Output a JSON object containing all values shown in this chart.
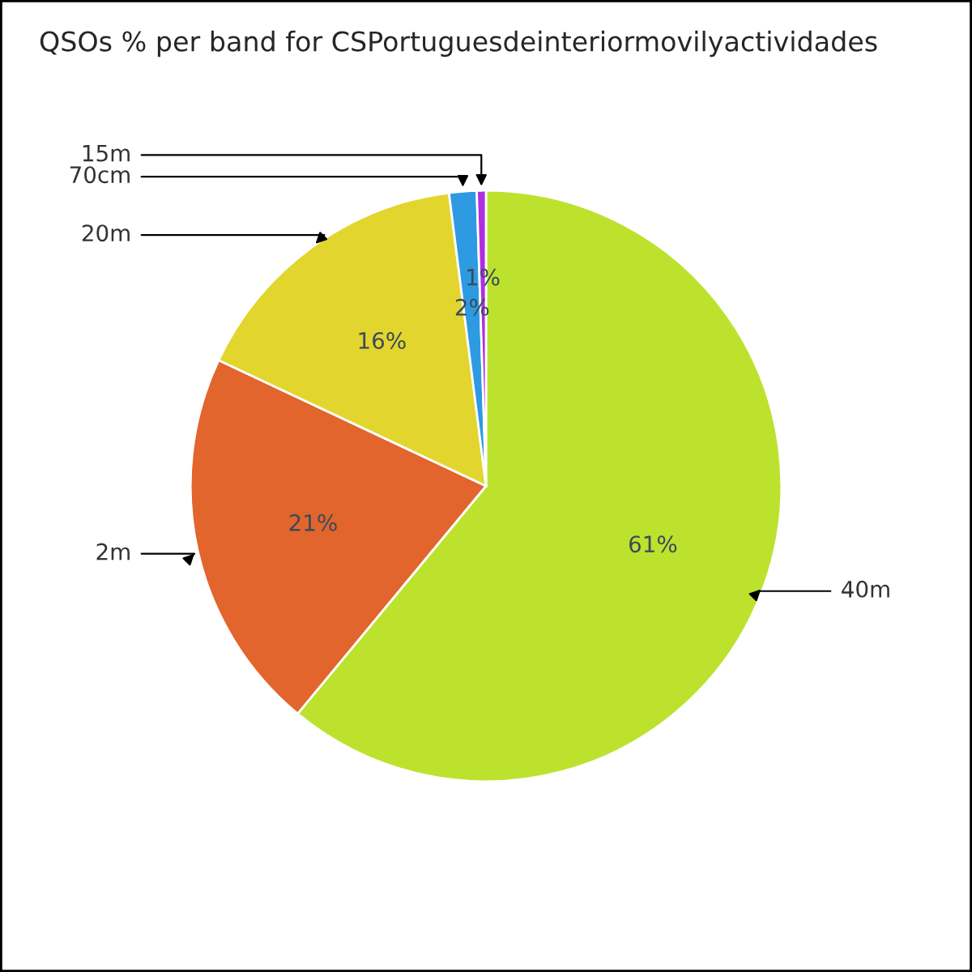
{
  "chart_data": {
    "type": "pie",
    "title": "QSOs % per band for CSPortuguesdeinteriormovilyactividades",
    "categories": [
      "40m",
      "2m",
      "20m",
      "70cm",
      "15m"
    ],
    "values": [
      61,
      21,
      16,
      1.5,
      0.5
    ],
    "value_labels": [
      "61%",
      "21%",
      "16%",
      "2%",
      "1%"
    ],
    "colors": [
      "#bde22e",
      "#e2652e",
      "#e2d52e",
      "#2e9ae2",
      "#b02ee2"
    ]
  }
}
